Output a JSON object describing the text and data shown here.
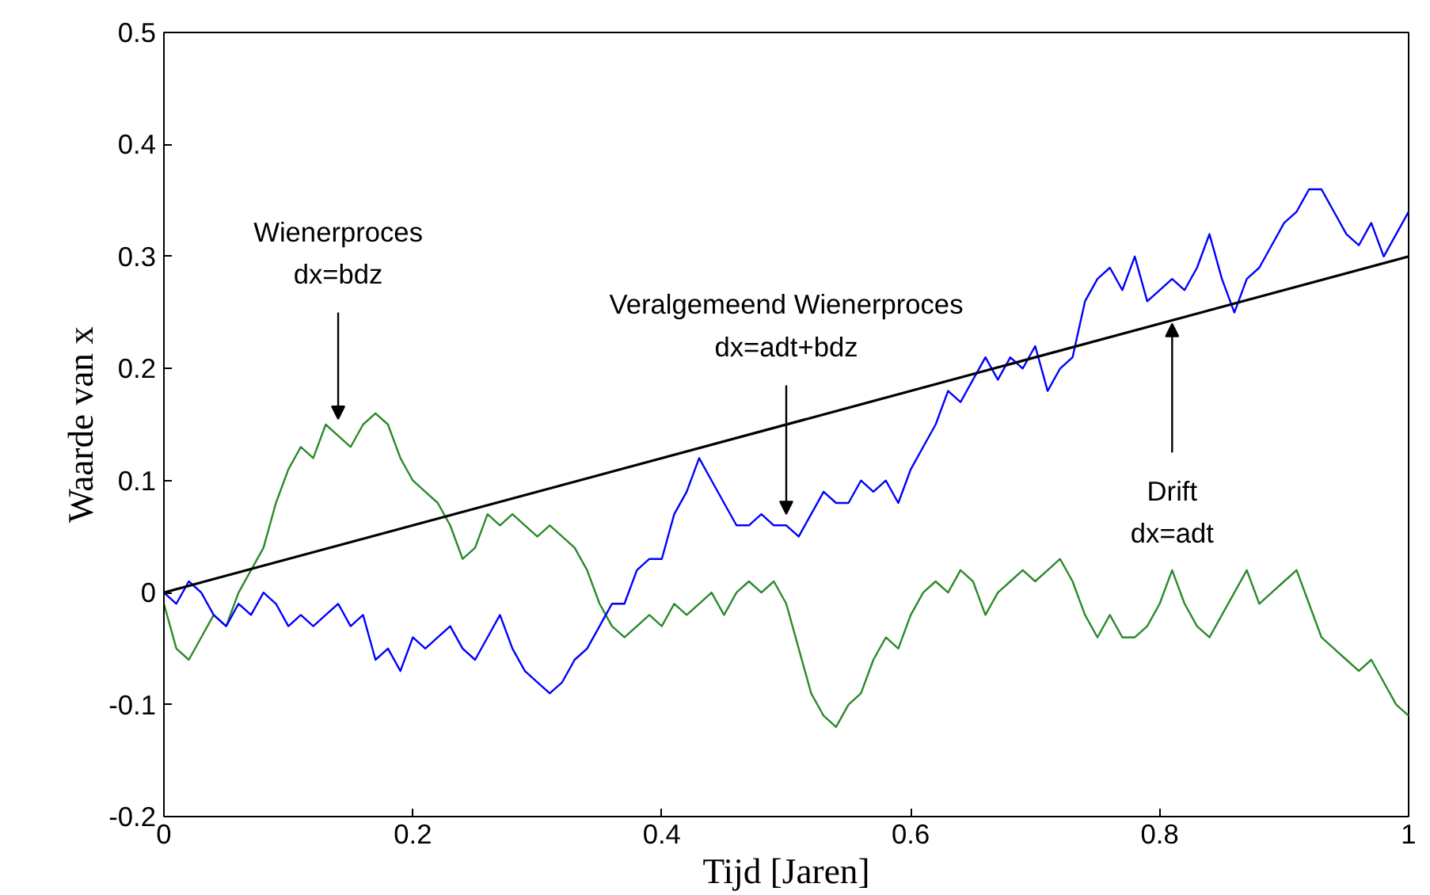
{
  "chart_data": {
    "type": "line",
    "xlabel": "Tijd [Jaren]",
    "ylabel": "Waarde van x",
    "x": [
      0,
      0.01,
      0.02,
      0.03,
      0.04,
      0.05,
      0.06,
      0.07,
      0.08,
      0.09,
      0.1,
      0.11,
      0.12,
      0.13,
      0.14,
      0.15,
      0.16,
      0.17,
      0.18,
      0.19,
      0.2,
      0.21,
      0.22,
      0.23,
      0.24,
      0.25,
      0.26,
      0.27,
      0.28,
      0.29,
      0.3,
      0.31,
      0.32,
      0.33,
      0.34,
      0.35,
      0.36,
      0.37,
      0.38,
      0.39,
      0.4,
      0.41,
      0.42,
      0.43,
      0.44,
      0.45,
      0.46,
      0.47,
      0.48,
      0.49,
      0.5,
      0.51,
      0.52,
      0.53,
      0.54,
      0.55,
      0.56,
      0.57,
      0.58,
      0.59,
      0.6,
      0.61,
      0.62,
      0.63,
      0.64,
      0.65,
      0.66,
      0.67,
      0.68,
      0.69,
      0.7,
      0.71,
      0.72,
      0.73,
      0.74,
      0.75,
      0.76,
      0.77,
      0.78,
      0.79,
      0.8,
      0.81,
      0.82,
      0.83,
      0.84,
      0.85,
      0.86,
      0.87,
      0.88,
      0.89,
      0.9,
      0.91,
      0.92,
      0.93,
      0.94,
      0.95,
      0.96,
      0.97,
      0.98,
      0.99,
      1.0
    ],
    "series": [
      {
        "color": "#2a8a2a",
        "values": [
          -0.01,
          -0.05,
          -0.06,
          -0.04,
          -0.02,
          -0.03,
          0.0,
          0.02,
          0.04,
          0.08,
          0.11,
          0.13,
          0.12,
          0.15,
          0.14,
          0.13,
          0.15,
          0.16,
          0.15,
          0.12,
          0.1,
          0.09,
          0.08,
          0.06,
          0.03,
          0.04,
          0.07,
          0.06,
          0.07,
          0.06,
          0.05,
          0.06,
          0.05,
          0.04,
          0.02,
          -0.01,
          -0.03,
          -0.04,
          -0.03,
          -0.02,
          -0.03,
          -0.01,
          -0.02,
          -0.01,
          0.0,
          -0.02,
          0.0,
          0.01,
          0.0,
          0.01,
          -0.01,
          -0.05,
          -0.09,
          -0.11,
          -0.12,
          -0.1,
          -0.09,
          -0.06,
          -0.04,
          -0.05,
          -0.02,
          0.0,
          0.01,
          0.0,
          0.02,
          0.01,
          -0.02,
          0.0,
          0.01,
          0.02,
          0.01,
          0.02,
          0.03,
          0.01,
          -0.02,
          -0.04,
          -0.02,
          -0.04,
          -0.04,
          -0.03,
          -0.01,
          0.02,
          -0.01,
          -0.03,
          -0.04,
          -0.02,
          0.0,
          0.02,
          -0.01,
          0.0,
          0.01,
          0.02,
          -0.01,
          -0.04,
          -0.05,
          -0.06,
          -0.07,
          -0.06,
          -0.08,
          -0.1,
          -0.11
        ]
      },
      {
        "color": "#0000ff",
        "values": [
          0.0,
          -0.01,
          0.01,
          0.0,
          -0.02,
          -0.03,
          -0.01,
          -0.02,
          0.0,
          -0.01,
          -0.03,
          -0.02,
          -0.03,
          -0.02,
          -0.01,
          -0.03,
          -0.02,
          -0.06,
          -0.05,
          -0.07,
          -0.04,
          -0.05,
          -0.04,
          -0.03,
          -0.05,
          -0.06,
          -0.04,
          -0.02,
          -0.05,
          -0.07,
          -0.08,
          -0.09,
          -0.08,
          -0.06,
          -0.05,
          -0.03,
          -0.01,
          -0.01,
          0.02,
          0.03,
          0.03,
          0.07,
          0.09,
          0.12,
          0.1,
          0.08,
          0.06,
          0.06,
          0.07,
          0.06,
          0.06,
          0.05,
          0.07,
          0.09,
          0.08,
          0.08,
          0.1,
          0.09,
          0.1,
          0.08,
          0.11,
          0.13,
          0.15,
          0.18,
          0.17,
          0.19,
          0.21,
          0.19,
          0.21,
          0.2,
          0.22,
          0.18,
          0.2,
          0.21,
          0.26,
          0.28,
          0.29,
          0.27,
          0.3,
          0.26,
          0.27,
          0.28,
          0.27,
          0.29,
          0.32,
          0.28,
          0.25,
          0.28,
          0.29,
          0.31,
          0.33,
          0.34,
          0.36,
          0.36,
          0.34,
          0.32,
          0.31,
          0.33,
          0.3,
          0.32,
          0.34
        ]
      },
      {
        "color": "#000000",
        "x": [
          0,
          1
        ],
        "values": [
          0,
          0.3
        ]
      }
    ],
    "annotations": [
      {
        "text": "Wienerproces\ndx=bdz",
        "x": 0.14,
        "y": 0.15
      },
      {
        "text": "Veralgemeend Wienerproces\ndx=adt+bdz",
        "x": 0.5,
        "y": 0.065
      },
      {
        "text": "Drift\ndx=adt",
        "x": 0.81,
        "y": 0.245
      }
    ],
    "xlim": [
      0,
      1
    ],
    "ylim": [
      -0.2,
      0.5
    ],
    "xticks": [
      0,
      0.2,
      0.4,
      0.6,
      0.8,
      1
    ],
    "yticks": [
      {
        "value": -0.2,
        "label": "-0.2"
      },
      {
        "value": -0.1,
        "label": "-0.1"
      },
      0,
      0.1,
      0.2,
      0.3,
      0.4,
      0.5
    ],
    "grid": false
  }
}
